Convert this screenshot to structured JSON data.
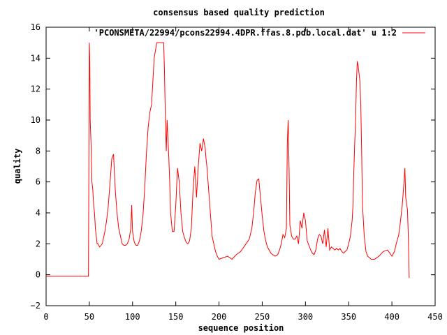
{
  "chart_data": {
    "type": "line",
    "title": "consensus based quality prediction",
    "xlabel": "sequence position",
    "ylabel": "quality",
    "xlim": [
      0,
      450
    ],
    "ylim": [
      -2,
      16
    ],
    "xticks": [
      0,
      50,
      100,
      150,
      200,
      250,
      300,
      350,
      400,
      450
    ],
    "yticks": [
      -2,
      0,
      2,
      4,
      6,
      8,
      10,
      12,
      14,
      16
    ],
    "grid": false,
    "legend_position": "top-right",
    "series": [
      {
        "name": "'PCONSMETA/22994/pcons22994.4DPR.ffas.8.pdb.local.dat' u 1:2",
        "color": "#ff0000",
        "x": [
          0,
          49,
          49.5,
          50,
          50.5,
          51,
          52,
          53,
          54,
          55,
          56,
          57,
          58,
          59,
          60,
          62,
          65,
          68,
          70,
          72,
          74,
          76,
          78,
          80,
          82,
          84,
          86,
          88,
          90,
          92,
          94,
          96,
          98,
          99,
          100,
          102,
          104,
          106,
          108,
          110,
          112,
          114,
          116,
          118,
          120,
          122,
          125,
          128,
          130,
          132,
          134,
          135,
          136,
          137,
          138,
          139,
          140,
          142,
          143,
          144,
          146,
          148,
          150,
          152,
          154,
          156,
          158,
          160,
          162,
          164,
          166,
          168,
          170,
          172,
          174,
          176,
          178,
          180,
          182,
          184,
          185,
          186,
          188,
          190,
          192,
          194,
          196,
          198,
          200,
          205,
          210,
          215,
          220,
          225,
          230,
          235,
          238,
          240,
          242,
          244,
          246,
          248,
          250,
          252,
          254,
          256,
          258,
          260,
          262,
          265,
          268,
          270,
          272,
          274,
          276,
          278,
          279,
          280,
          281,
          282,
          284,
          286,
          288,
          290,
          292,
          294,
          296,
          298,
          300,
          302,
          304,
          306,
          308,
          310,
          312,
          314,
          316,
          318,
          320,
          322,
          324,
          326,
          328,
          330,
          332,
          334,
          336,
          338,
          340,
          342,
          344,
          346,
          348,
          350,
          352,
          354,
          355,
          356,
          357,
          358,
          359,
          360,
          361,
          362,
          363,
          364,
          365,
          366,
          368,
          370,
          372,
          374,
          376,
          378,
          380,
          385,
          390,
          395,
          400,
          403,
          405,
          408,
          410,
          412,
          414,
          415,
          416,
          417,
          418,
          419,
          420
        ],
        "y": [
          -0.1,
          -0.1,
          7.0,
          15.0,
          14.0,
          10.0,
          8.5,
          6.0,
          5.5,
          4.5,
          4.0,
          3.0,
          2.5,
          2.0,
          2.0,
          1.8,
          2.0,
          2.8,
          3.5,
          4.5,
          6.0,
          7.5,
          7.8,
          5.5,
          4.0,
          3.0,
          2.5,
          2.0,
          1.9,
          1.9,
          2.0,
          2.3,
          3.0,
          4.5,
          2.8,
          2.1,
          1.9,
          1.9,
          2.2,
          2.8,
          3.8,
          5.5,
          7.8,
          9.5,
          10.5,
          11.0,
          14.0,
          15.0,
          15.0,
          15.0,
          15.0,
          15.0,
          15.0,
          13.0,
          10.0,
          8.0,
          10.0,
          7.5,
          6.0,
          4.0,
          2.8,
          2.8,
          4.5,
          6.9,
          6.0,
          4.0,
          2.8,
          2.4,
          2.1,
          2.0,
          2.2,
          3.0,
          5.5,
          7.0,
          5.0,
          7.0,
          8.5,
          8.0,
          8.8,
          8.2,
          7.5,
          7.0,
          5.5,
          4.0,
          2.5,
          2.0,
          1.5,
          1.2,
          1.0,
          1.1,
          1.2,
          1.0,
          1.3,
          1.5,
          1.9,
          2.3,
          3.0,
          4.0,
          5.3,
          6.1,
          6.2,
          5.0,
          3.8,
          2.8,
          2.2,
          1.8,
          1.6,
          1.4,
          1.3,
          1.2,
          1.3,
          1.6,
          2.0,
          2.6,
          2.4,
          3.0,
          8.5,
          10.0,
          7.0,
          3.2,
          2.5,
          2.3,
          2.3,
          2.5,
          2.0,
          3.5,
          3.0,
          4.0,
          3.5,
          2.2,
          1.9,
          1.6,
          1.4,
          1.3,
          1.6,
          2.3,
          2.6,
          2.5,
          2.0,
          2.9,
          1.8,
          3.0,
          1.6,
          1.8,
          1.7,
          1.6,
          1.7,
          1.6,
          1.7,
          1.5,
          1.4,
          1.5,
          1.6,
          2.0,
          2.5,
          3.5,
          4.5,
          6.8,
          8.5,
          10.0,
          12.5,
          13.8,
          13.5,
          13.0,
          12.5,
          11.0,
          8.0,
          4.5,
          2.5,
          1.5,
          1.2,
          1.1,
          1.0,
          1.0,
          1.0,
          1.2,
          1.5,
          1.6,
          1.2,
          1.5,
          2.0,
          2.6,
          3.5,
          4.5,
          6.0,
          6.9,
          5.0,
          4.6,
          4.2,
          2.5,
          -0.2
        ]
      }
    ]
  }
}
